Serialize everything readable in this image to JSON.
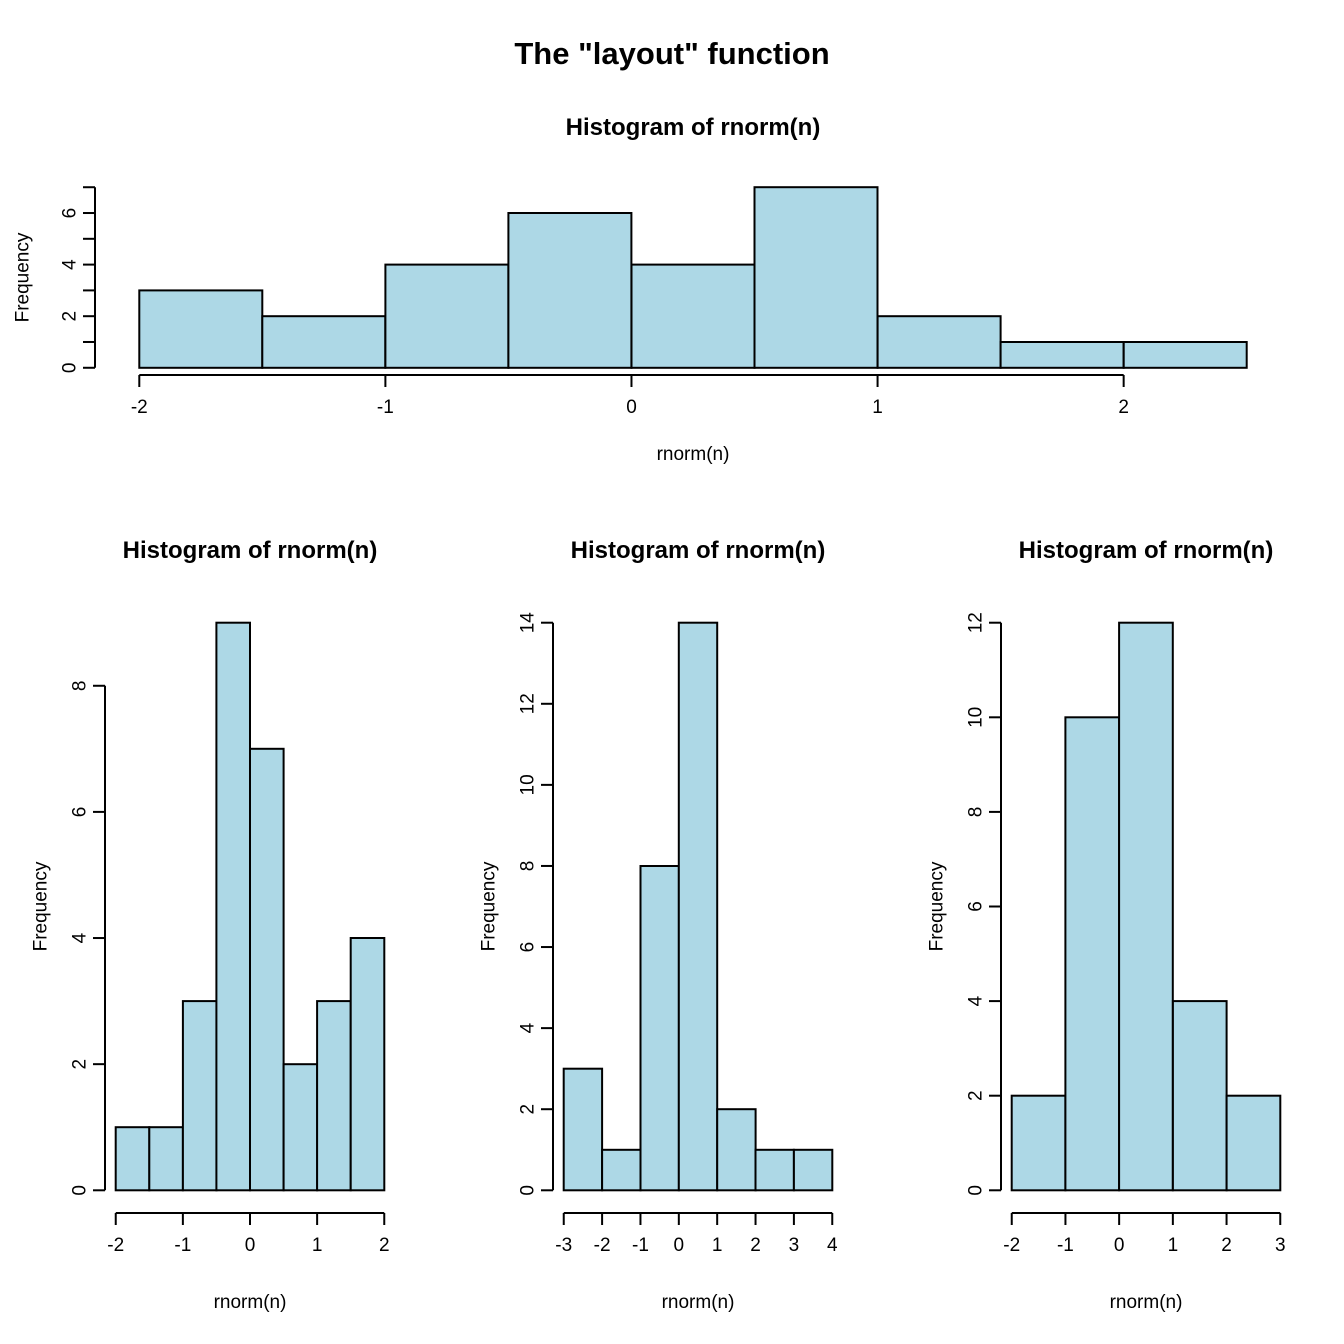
{
  "figure": {
    "title": "The \"layout\" function"
  },
  "colors": {
    "background": "#FFFFFF",
    "bar_fill": "#ADD8E6",
    "bar_stroke": "#000000",
    "axis": "#000000",
    "text": "#000000"
  },
  "chart_data": [
    {
      "id": "top",
      "type": "bar",
      "subtype": "histogram",
      "title": "Histogram of rnorm(n)",
      "xlabel": "rnorm(n)",
      "ylabel": "Frequency",
      "bin_start": -2,
      "bin_width": 0.5,
      "categories": [
        "[-2,-1.5]",
        "[-1.5,-1]",
        "[-1,-0.5]",
        "[-0.5,0]",
        "[0,0.5]",
        "[0.5,1]",
        "[1,1.5]",
        "[1.5,2]",
        "[2,2.5]"
      ],
      "values": [
        3,
        2,
        4,
        6,
        4,
        7,
        2,
        1,
        1
      ],
      "x_ticks": [
        -2,
        -1,
        0,
        1,
        2
      ],
      "y_ticks": [
        0,
        2,
        4,
        6
      ],
      "y_minor_ticks": [
        1,
        3,
        5,
        7
      ],
      "xlim": [
        -2,
        2.5
      ],
      "ylim": [
        0,
        7
      ],
      "grid": false,
      "legend": "none"
    },
    {
      "id": "bottom_left",
      "type": "bar",
      "subtype": "histogram",
      "title": "Histogram of rnorm(n)",
      "xlabel": "rnorm(n)",
      "ylabel": "Frequency",
      "bin_start": -2,
      "bin_width": 0.5,
      "categories": [
        "[-2,-1.5]",
        "[-1.5,-1]",
        "[-1,-0.5]",
        "[-0.5,0]",
        "[0,0.5]",
        "[0.5,1]",
        "[1,1.5]",
        "[1.5,2]"
      ],
      "values": [
        1,
        1,
        3,
        9,
        7,
        2,
        3,
        4
      ],
      "x_ticks": [
        -2,
        -1,
        0,
        1,
        2
      ],
      "y_ticks": [
        0,
        2,
        4,
        6,
        8
      ],
      "y_minor_ticks": [],
      "xlim": [
        -2,
        2
      ],
      "ylim": [
        0,
        9
      ],
      "grid": false,
      "legend": "none"
    },
    {
      "id": "bottom_middle",
      "type": "bar",
      "subtype": "histogram",
      "title": "Histogram of rnorm(n)",
      "xlabel": "rnorm(n)",
      "ylabel": "Frequency",
      "bin_start": -3,
      "bin_width": 1,
      "categories": [
        "[-3,-2]",
        "[-2,-1]",
        "[-1,0]",
        "[0,1]",
        "[1,2]",
        "[2,3]",
        "[3,4]"
      ],
      "values": [
        3,
        1,
        8,
        14,
        2,
        1,
        1
      ],
      "x_ticks": [
        -3,
        -2,
        -1,
        0,
        1,
        2,
        3,
        4
      ],
      "y_ticks": [
        0,
        2,
        4,
        6,
        8,
        10,
        12,
        14
      ],
      "y_minor_ticks": [],
      "xlim": [
        -3,
        4
      ],
      "ylim": [
        0,
        14
      ],
      "grid": false,
      "legend": "none"
    },
    {
      "id": "bottom_right",
      "type": "bar",
      "subtype": "histogram",
      "title": "Histogram of rnorm(n)",
      "xlabel": "rnorm(n)",
      "ylabel": "Frequency",
      "bin_start": -2,
      "bin_width": 1,
      "categories": [
        "[-2,-1]",
        "[-1,0]",
        "[0,1]",
        "[1,2]",
        "[2,3]"
      ],
      "values": [
        2,
        10,
        12,
        4,
        2
      ],
      "x_ticks": [
        -2,
        -1,
        0,
        1,
        2,
        3
      ],
      "y_ticks": [
        0,
        2,
        4,
        6,
        8,
        10,
        12
      ],
      "y_minor_ticks": [],
      "xlim": [
        -2,
        3
      ],
      "ylim": [
        0,
        12
      ],
      "grid": false,
      "legend": "none"
    }
  ]
}
